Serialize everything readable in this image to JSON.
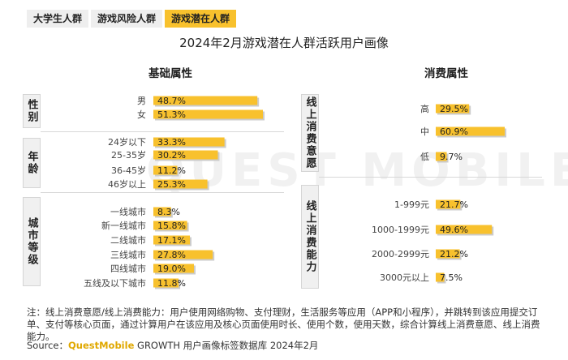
{
  "tabs": [
    {
      "label": "大学生人群",
      "active": false
    },
    {
      "label": "游戏风险人群",
      "active": false
    },
    {
      "label": "游戏潜在人群",
      "active": true
    }
  ],
  "title": "2024年2月游戏潜在人群活跃用户画像",
  "colors": {
    "bar": "#f8c12d",
    "shadow": "#cccccc"
  },
  "watermark": "QUEST MOBILE",
  "note": "注：线上消费意愿/线上消费能力：用户使用网络购物、支付理财，生活服务等应用（APP和小程序），并跳转到该应用提交订单、支付等核心页面，通过计算用户在该应用及核心页面使用时长、使用个数，使用天数，综合计算线上消费意愿、线上消费能力。",
  "source": {
    "prefix": "Source：",
    "brand": "QuestMobile",
    "rest": " GROWTH 用户画像标签数据库 2024年2月"
  },
  "chart_data": [
    {
      "type": "bar",
      "title": "基础属性",
      "groups": [
        {
          "name": "性别",
          "categories": [
            "男",
            "女"
          ],
          "values": [
            48.7,
            51.3
          ]
        },
        {
          "name": "年龄",
          "categories": [
            "24岁以下",
            "25-35岁",
            "36-45岁",
            "46岁以上"
          ],
          "values": [
            33.3,
            30.2,
            11.2,
            25.3
          ]
        },
        {
          "name": "城市等级",
          "categories": [
            "一线城市",
            "新一线城市",
            "二线城市",
            "三线城市",
            "四线城市",
            "五线及以下城市"
          ],
          "values": [
            8.3,
            15.8,
            17.1,
            27.8,
            19.0,
            11.8
          ]
        }
      ],
      "value_suffix": "%"
    },
    {
      "type": "bar",
      "title": "消费属性",
      "groups": [
        {
          "name": "线上消费意愿",
          "categories": [
            "高",
            "中",
            "低"
          ],
          "values": [
            29.5,
            60.9,
            9.7
          ]
        },
        {
          "name": "线上消费能力",
          "categories": [
            "1-999元",
            "1000-1999元",
            "2000-2999元",
            "3000元以上"
          ],
          "values": [
            21.7,
            49.6,
            21.2,
            7.5
          ]
        }
      ],
      "value_suffix": "%"
    }
  ]
}
